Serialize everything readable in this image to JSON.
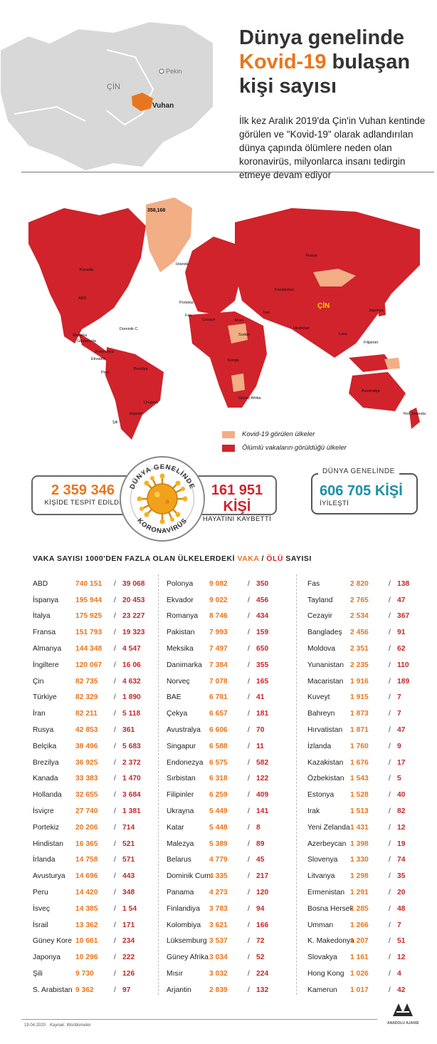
{
  "header": {
    "title_line1": "Dünya genelinde",
    "title_highlight": "Kovid-19",
    "title_line2_rest": "bulaşan",
    "title_line3": "kişi sayısı",
    "subtitle": "İlk kez Aralık 2019'da Çin'in Vuhan kentinde görülen ve \"Kovid-19\" olarak adlandırılan dünya çapında ölümlere neden olan koronavirüs, milyonlarca insanı tedirgin etmeye devam ediyor",
    "inset_labels": {
      "country": "ÇİN",
      "capital": "Pekin",
      "city": "Vuhan"
    }
  },
  "map": {
    "labels": {
      "greenland_cases": "358,168",
      "kanada": "Kanada",
      "abd": "ABD",
      "meksika": "Meksika",
      "dominik": "Dominik C.",
      "guatemala": "Guatemala",
      "kolombiya": "Kolombiya",
      "ekvador": "Ekvador",
      "peru": "Peru",
      "brezilya": "Brezilya",
      "uruguay": "Uruguay",
      "arjantin": "Arjantin",
      "sili": "Şili",
      "izlanda": "İzlanda",
      "portekiz": "Portekiz",
      "fas": "Fas",
      "cezayir": "Cezayir",
      "misir": "Mısır",
      "sudan": "Sudan",
      "kongo": "Kongo",
      "gafrika": "Güney Afrika",
      "rusya": "Rusya",
      "kazakistan": "Kazakistan",
      "iran": "İran",
      "hindistan": "Hindistan",
      "cin": "ÇİN",
      "japonya": "Japonya",
      "laos": "Laos",
      "filipinler": "Filipinler",
      "avustralya": "Avustralya",
      "yzelanda": "Yeni Zelanda"
    }
  },
  "legend": {
    "seen": "Kovid-19 görülen ülkeler",
    "deaths": "Ölümlü vakaların görüldüğü ülkeler"
  },
  "stats": {
    "cases_value": "2 359 346",
    "cases_label": "KİŞİDE TESPİT EDİLDİ",
    "deaths_value": "161 951 KİŞİ",
    "deaths_label": "HAYATINI KAYBETTİ",
    "recovered_caption": "DÜNYA GENELİNDE",
    "recovered_value": "606 705 KİŞİ",
    "recovered_label": "İYİLEŞTİ",
    "ring_top": "DÜNYA GENELİNDE",
    "ring_bottom": "KORONAVİRÜS"
  },
  "table": {
    "title_pre": "VAKA SAYISI 1000'DEN FAZLA OLAN ÜLKELERDEKİ ",
    "title_vaka": "VAKA",
    "title_sep": " / ",
    "title_olu": "ÖLÜ",
    "title_post": " SAYISI",
    "rows": [
      {
        "country": "ABD",
        "cases": "740 151",
        "deaths": "39 068"
      },
      {
        "country": "İspanya",
        "cases": "195 944",
        "deaths": "20 453"
      },
      {
        "country": "İtalya",
        "cases": "175 925",
        "deaths": "23 227"
      },
      {
        "country": "Fransa",
        "cases": "151 793",
        "deaths": "19 323"
      },
      {
        "country": "Almanya",
        "cases": "144 348",
        "deaths": "4 547"
      },
      {
        "country": "İngiltere",
        "cases": "120 067",
        "deaths": "16 06"
      },
      {
        "country": "Çin",
        "cases": "82 735",
        "deaths": "4 632"
      },
      {
        "country": "Türkiye",
        "cases": "82 329",
        "deaths": "1 890"
      },
      {
        "country": "İran",
        "cases": "82 211",
        "deaths": "5 118"
      },
      {
        "country": "Rusya",
        "cases": "42 853",
        "deaths": "361"
      },
      {
        "country": "Belçika",
        "cases": "38 496",
        "deaths": "5 683"
      },
      {
        "country": "Brezilya",
        "cases": "36 925",
        "deaths": "2 372"
      },
      {
        "country": "Kanada",
        "cases": "33 383",
        "deaths": "1 470"
      },
      {
        "country": "Hollanda",
        "cases": "32 655",
        "deaths": "3 684"
      },
      {
        "country": "İsviçre",
        "cases": "27 740",
        "deaths": "1 381"
      },
      {
        "country": "Portekiz",
        "cases": "20 206",
        "deaths": "714"
      },
      {
        "country": "Hindistan",
        "cases": "16 365",
        "deaths": "521"
      },
      {
        "country": "İrlanda",
        "cases": "14 758",
        "deaths": "571"
      },
      {
        "country": "Avusturya",
        "cases": "14 696",
        "deaths": "443"
      },
      {
        "country": "Peru",
        "cases": "14 420",
        "deaths": "348"
      },
      {
        "country": "İsveç",
        "cases": "14 385",
        "deaths": "1 54"
      },
      {
        "country": "İsrail",
        "cases": "13 362",
        "deaths": "171"
      },
      {
        "country": "Güney Kore",
        "cases": "10 661",
        "deaths": "234"
      },
      {
        "country": "Japonya",
        "cases": "10 296",
        "deaths": "222"
      },
      {
        "country": "Şili",
        "cases": "9 730",
        "deaths": "126"
      },
      {
        "country": "S. Arabistan",
        "cases": "9 362",
        "deaths": "97"
      },
      {
        "country": "Polonya",
        "cases": "9 082",
        "deaths": "350"
      },
      {
        "country": "Ekvador",
        "cases": "9 022",
        "deaths": "456"
      },
      {
        "country": "Romanya",
        "cases": "8 746",
        "deaths": "434"
      },
      {
        "country": "Pakistan",
        "cases": "7 993",
        "deaths": "159"
      },
      {
        "country": "Meksika",
        "cases": "7 497",
        "deaths": "650"
      },
      {
        "country": "Danimarka",
        "cases": "7 384",
        "deaths": "355"
      },
      {
        "country": "Norveç",
        "cases": "7 078",
        "deaths": "165"
      },
      {
        "country": "BAE",
        "cases": "6 781",
        "deaths": "41"
      },
      {
        "country": "Çekya",
        "cases": "6 657",
        "deaths": "181"
      },
      {
        "country": "Avustralya",
        "cases": "6 606",
        "deaths": "70"
      },
      {
        "country": "Singapur",
        "cases": "6 588",
        "deaths": "11"
      },
      {
        "country": "Endonezya",
        "cases": "6 575",
        "deaths": "582"
      },
      {
        "country": "Sırbistan",
        "cases": "6 318",
        "deaths": "122"
      },
      {
        "country": "Filipinler",
        "cases": "6 259",
        "deaths": "409"
      },
      {
        "country": "Ukrayna",
        "cases": "5 449",
        "deaths": "141"
      },
      {
        "country": "Katar",
        "cases": "5 448",
        "deaths": "8"
      },
      {
        "country": "Malezya",
        "cases": "5 389",
        "deaths": "89"
      },
      {
        "country": "Belarus",
        "cases": "4 779",
        "deaths": "45"
      },
      {
        "country": "Dominik Cum.",
        "cases": "4 335",
        "deaths": "217"
      },
      {
        "country": "Panama",
        "cases": "4 273",
        "deaths": "120"
      },
      {
        "country": "Finlandiya",
        "cases": "3 783",
        "deaths": "94"
      },
      {
        "country": "Kolombiya",
        "cases": "3 621",
        "deaths": "166"
      },
      {
        "country": "Lüksemburg",
        "cases": "3 537",
        "deaths": "72"
      },
      {
        "country": "Güney Afrika",
        "cases": "3 034",
        "deaths": "52"
      },
      {
        "country": "Mısır",
        "cases": "3 032",
        "deaths": "224"
      },
      {
        "country": "Arjantin",
        "cases": "2 839",
        "deaths": "132"
      },
      {
        "country": "Fas",
        "cases": "2 820",
        "deaths": "138"
      },
      {
        "country": "Tayland",
        "cases": "2 765",
        "deaths": "47"
      },
      {
        "country": "Cezayir",
        "cases": "2 534",
        "deaths": "367"
      },
      {
        "country": "Bangladeş",
        "cases": "2 456",
        "deaths": "91"
      },
      {
        "country": "Moldova",
        "cases": "2 351",
        "deaths": "62"
      },
      {
        "country": "Yunanistan",
        "cases": "2 235",
        "deaths": "110"
      },
      {
        "country": "Macaristan",
        "cases": "1 916",
        "deaths": "189"
      },
      {
        "country": "Kuveyt",
        "cases": "1 915",
        "deaths": "7"
      },
      {
        "country": "Bahreyn",
        "cases": "1 873",
        "deaths": "7"
      },
      {
        "country": "Hırvatistan",
        "cases": "1 871",
        "deaths": "47"
      },
      {
        "country": "İzlanda",
        "cases": "1 760",
        "deaths": "9"
      },
      {
        "country": "Kazakistan",
        "cases": "1 676",
        "deaths": "17"
      },
      {
        "country": "Özbekistan",
        "cases": "1 543",
        "deaths": "5"
      },
      {
        "country": "Estonya",
        "cases": "1 528",
        "deaths": "40"
      },
      {
        "country": "Irak",
        "cases": "1 513",
        "deaths": "82"
      },
      {
        "country": "Yeni Zelanda",
        "cases": "1 431",
        "deaths": "12"
      },
      {
        "country": "Azerbeycan",
        "cases": "1 398",
        "deaths": "19"
      },
      {
        "country": "Slovenya",
        "cases": "1 330",
        "deaths": "74"
      },
      {
        "country": "Litvanya",
        "cases": "1 298",
        "deaths": "35"
      },
      {
        "country": "Ermenistan",
        "cases": "1 291",
        "deaths": "20"
      },
      {
        "country": "Bosna Hersek",
        "cases": "1 285",
        "deaths": "48"
      },
      {
        "country": "Umman",
        "cases": "1 266",
        "deaths": "7"
      },
      {
        "country": "K. Makedonya",
        "cases": "1 207",
        "deaths": "51"
      },
      {
        "country": "Slovakya",
        "cases": "1 161",
        "deaths": "12"
      },
      {
        "country": "Hong Kong",
        "cases": "1 026",
        "deaths": "4"
      },
      {
        "country": "Kamerun",
        "cases": "1 017",
        "deaths": "42"
      }
    ]
  },
  "footer": {
    "date": "19.04.2020",
    "source": "Kaynak: Worldometer",
    "logo_text": "ANADOLU AJANSI"
  },
  "colors": {
    "accent_orange": "#e8761e",
    "death_red": "#d0232b",
    "seen_peach": "#f2ae85",
    "recovered_teal": "#1d8fa6",
    "inset_gray": "#d9d9d9"
  },
  "icons": [
    "virus-icon",
    "aa-logo-icon"
  ]
}
